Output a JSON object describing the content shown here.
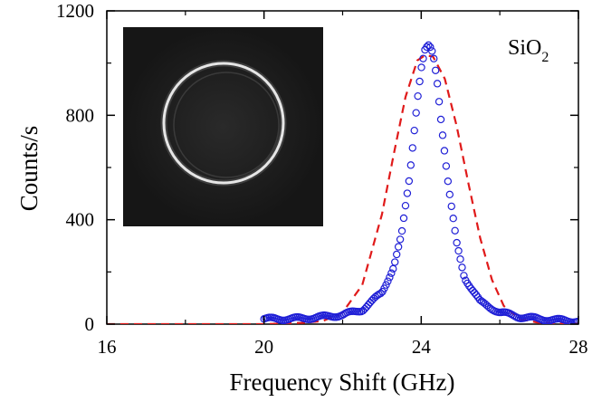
{
  "chart_data": {
    "type": "scatter",
    "title": "",
    "xlabel": "Frequency Shift (GHz)",
    "ylabel": "Counts/s",
    "xlim": [
      16,
      28
    ],
    "ylim": [
      0,
      1200
    ],
    "x_ticks": [
      16,
      20,
      24,
      28
    ],
    "y_ticks": [
      0,
      400,
      800,
      1200
    ],
    "x_tick_labels": [
      "16",
      "20",
      "24",
      "28"
    ],
    "y_tick_labels": [
      "0",
      "400",
      "800",
      "1200"
    ],
    "grid": false,
    "legend": "none",
    "annotation": {
      "text": "SiO",
      "subscript": "2",
      "position": "top-right"
    },
    "inset": {
      "type": "image",
      "description_shown": "dark square with bright ring",
      "position": "top-left"
    },
    "series": [
      {
        "kind": "measured",
        "marker": "open-circle",
        "color": "#1f1fd6",
        "x_start": 20.0,
        "x_end": 28.0,
        "x_step": 0.045,
        "peak_x": 24.2,
        "peak_y": 1065,
        "points": [
          [
            20.0,
            20
          ],
          [
            20.5,
            20
          ],
          [
            21.0,
            22
          ],
          [
            21.5,
            28
          ],
          [
            22.0,
            35
          ],
          [
            22.5,
            55
          ],
          [
            23.0,
            120
          ],
          [
            23.3,
            220
          ],
          [
            23.5,
            340
          ],
          [
            23.7,
            560
          ],
          [
            23.9,
            860
          ],
          [
            24.0,
            980
          ],
          [
            24.1,
            1050
          ],
          [
            24.2,
            1065
          ],
          [
            24.3,
            1035
          ],
          [
            24.4,
            940
          ],
          [
            24.5,
            790
          ],
          [
            24.7,
            520
          ],
          [
            24.9,
            310
          ],
          [
            25.1,
            180
          ],
          [
            25.5,
            85
          ],
          [
            26.0,
            45
          ],
          [
            26.5,
            28
          ],
          [
            27.0,
            20
          ],
          [
            27.5,
            15
          ],
          [
            28.0,
            12
          ]
        ]
      },
      {
        "kind": "fit",
        "line_style": "dashed",
        "color": "#e01a1a",
        "points": [
          [
            16.0,
            0
          ],
          [
            20.0,
            0
          ],
          [
            21.0,
            5
          ],
          [
            21.5,
            12
          ],
          [
            22.0,
            45
          ],
          [
            22.5,
            150
          ],
          [
            23.0,
            420
          ],
          [
            23.3,
            650
          ],
          [
            23.6,
            870
          ],
          [
            23.9,
            1010
          ],
          [
            24.1,
            1030
          ],
          [
            24.3,
            1025
          ],
          [
            24.6,
            940
          ],
          [
            24.9,
            760
          ],
          [
            25.2,
            540
          ],
          [
            25.5,
            330
          ],
          [
            25.8,
            170
          ],
          [
            26.1,
            70
          ],
          [
            26.5,
            20
          ],
          [
            27.0,
            5
          ],
          [
            28.0,
            2
          ]
        ]
      }
    ]
  },
  "colors": {
    "measured": "#1f1fd6",
    "fit": "#e01a1a",
    "inset_background": "#151515",
    "ring": "#e6e6e6"
  }
}
